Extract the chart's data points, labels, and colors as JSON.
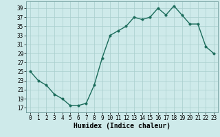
{
  "x": [
    0,
    1,
    2,
    3,
    4,
    5,
    6,
    7,
    8,
    9,
    10,
    11,
    12,
    13,
    14,
    15,
    16,
    17,
    18,
    19,
    20,
    21,
    22,
    23
  ],
  "y": [
    25,
    23,
    22,
    20,
    19,
    17.5,
    17.5,
    18,
    22,
    28,
    33,
    34,
    35,
    37,
    36.5,
    37,
    39,
    37.5,
    39.5,
    37.5,
    35.5,
    35.5,
    30.5,
    29
  ],
  "line_color": "#1a6b5a",
  "marker_color": "#1a6b5a",
  "bg_color": "#ceeaea",
  "grid_color": "#a8cecd",
  "xlabel": "Humidex (Indice chaleur)",
  "xlim": [
    -0.5,
    23.5
  ],
  "ylim": [
    16,
    40.5
  ],
  "yticks": [
    17,
    19,
    21,
    23,
    25,
    27,
    29,
    31,
    33,
    35,
    37,
    39
  ],
  "xticks": [
    0,
    1,
    2,
    3,
    4,
    5,
    6,
    7,
    8,
    9,
    10,
    11,
    12,
    13,
    14,
    15,
    16,
    17,
    18,
    19,
    20,
    21,
    22,
    23
  ],
  "xlabel_fontsize": 7,
  "tick_fontsize": 5.5,
  "marker_size": 2.5,
  "line_width": 1.0
}
